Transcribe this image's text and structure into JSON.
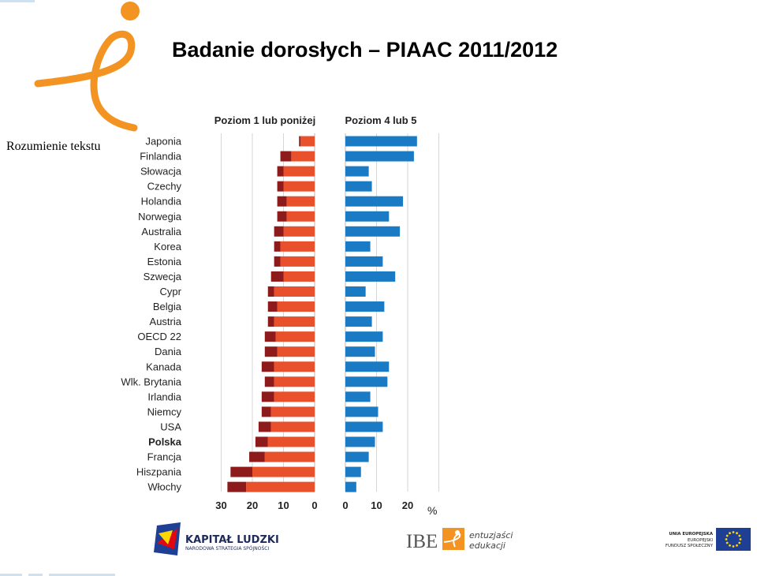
{
  "slide": {
    "title": "Badanie dorosłych – PIAAC 2011/2012",
    "side_label": "Rozumienie tekstu"
  },
  "colors": {
    "logo_orange": "#f39322",
    "level1_below": "#8e1b1b",
    "level1": "#e8512c",
    "level45": "#1a7bc4",
    "eu_blue": "#1f3f95",
    "eu_star": "#ffd700"
  },
  "chart_data": {
    "type": "bar",
    "panels": [
      "Poziom 1 lub poniżej",
      "Poziom 4 lub 5"
    ],
    "categories": [
      "Japonia",
      "Finlandia",
      "Słowacja",
      "Czechy",
      "Holandia",
      "Norwegia",
      "Australia",
      "Korea",
      "Estonia",
      "Szwecja",
      "Cypr",
      "Belgia",
      "Austria",
      "OECD 22",
      "Dania",
      "Kanada",
      "Wlk. Brytania",
      "Irlandia",
      "Niemcy",
      "USA",
      "Polska",
      "Francja",
      "Hiszpania",
      "Włochy"
    ],
    "highlight_category": "Polska",
    "series": [
      {
        "values": [
          0.5,
          3.5,
          2.0,
          2.0,
          3.0,
          3.0,
          3.0,
          2.0,
          2.0,
          4.0,
          2.0,
          3.0,
          2.0,
          3.5,
          4.0,
          4.0,
          3.0,
          4.0,
          3.0,
          4.0,
          4.0,
          5.0,
          7.0,
          6.0
        ]
      },
      {
        "values": [
          4.5,
          7.5,
          10.0,
          10.0,
          9.0,
          9.0,
          10.0,
          11.0,
          11.0,
          10.0,
          13.0,
          12.0,
          13.0,
          12.5,
          12.0,
          13.0,
          13.0,
          13.0,
          14.0,
          14.0,
          15.0,
          16.0,
          20.0,
          22.0
        ]
      },
      {
        "values": [
          23.0,
          22.0,
          7.5,
          8.5,
          18.5,
          14.0,
          17.5,
          8.0,
          12.0,
          16.0,
          6.5,
          12.5,
          8.5,
          12.0,
          9.5,
          14.0,
          13.5,
          8.0,
          10.5,
          12.0,
          9.5,
          7.5,
          5.0,
          3.5
        ]
      }
    ],
    "x_ticks_left": [
      "30",
      "20",
      "10",
      "0"
    ],
    "x_ticks_right": [
      "0",
      "10",
      "20"
    ],
    "unit": "%",
    "xlim_left": [
      0,
      30
    ],
    "xlim_right": [
      0,
      25
    ],
    "grid": true
  },
  "footer": {
    "kapital_ludzki": {
      "name": "KAPITAŁ LUDZKI",
      "subtitle": "NARODOWA STRATEGIA SPÓJNOŚCI"
    },
    "ibe": {
      "mark": "IBE",
      "line1": "entuzjaści",
      "line2": "edukacji"
    },
    "eu": {
      "line1": "UNIA EUROPEJSKA",
      "line2": "EUROPEJSKI",
      "line3": "FUNDUSZ SPOŁECZNY"
    }
  }
}
